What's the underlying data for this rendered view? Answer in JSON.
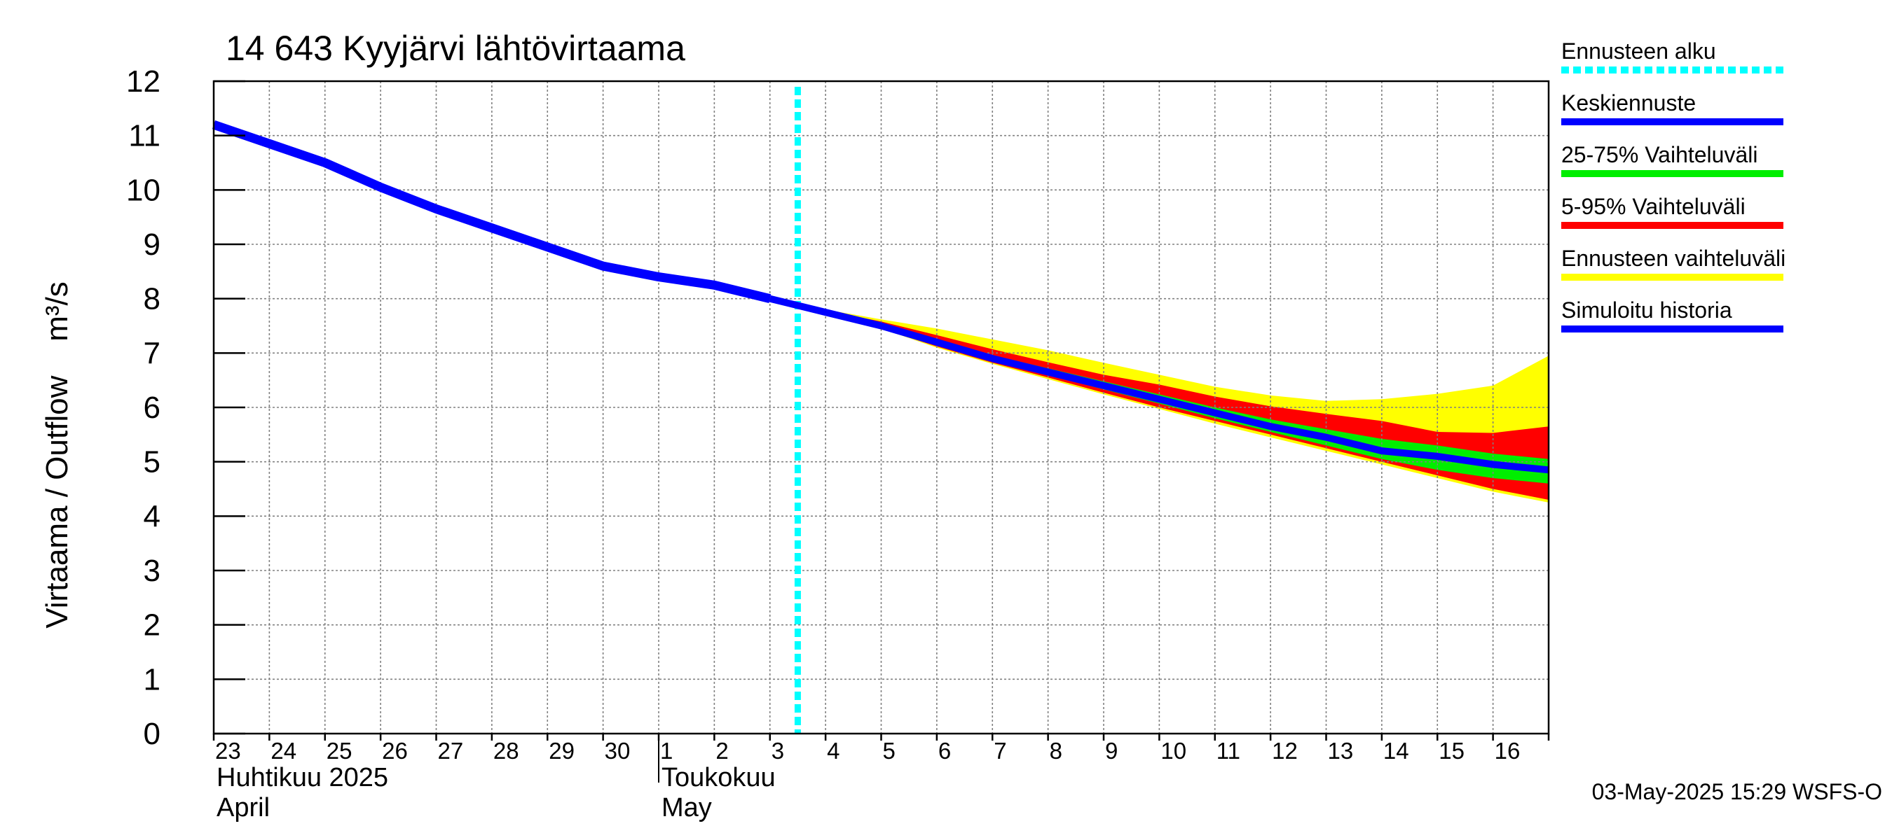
{
  "chart_data": {
    "type": "area",
    "title": "14 643 Kyyjärvi lähtövirtaama",
    "ylabel": "Virtaama / Outflow    m³/s",
    "ylim": [
      0,
      12
    ],
    "yticks": [
      "0",
      "1",
      "2",
      "3",
      "4",
      "5",
      "6",
      "7",
      "8",
      "9",
      "10",
      "11",
      "12"
    ],
    "x_range_days": [
      0,
      24
    ],
    "x_tick_labels": [
      "23",
      "24",
      "25",
      "26",
      "27",
      "28",
      "29",
      "30",
      "1",
      "2",
      "3",
      "4",
      "5",
      "6",
      "7",
      "8",
      "9",
      "10",
      "11",
      "12",
      "13",
      "14",
      "15",
      "16"
    ],
    "month_labels": [
      {
        "line1": "Huhtikuu  2025",
        "line2": "April",
        "start_day": 0
      },
      {
        "line1": "Toukokuu",
        "line2": "May",
        "start_day": 8
      }
    ],
    "month_separator_day": 8,
    "forecast_start_day": 10.5,
    "grid": true,
    "series": {
      "simulated_history": {
        "name": "Simuloitu historia",
        "color": "#0000ff",
        "x": [
          0,
          1,
          2,
          3,
          4,
          5,
          6,
          7,
          8,
          9,
          10
        ],
        "y": [
          11.2,
          10.85,
          10.5,
          10.05,
          9.65,
          9.3,
          8.95,
          8.6,
          8.4,
          8.25,
          8.0
        ]
      },
      "median_forecast": {
        "name": "Keskiennuste",
        "color": "#0000ff",
        "x": [
          10,
          11,
          12,
          13,
          14,
          15,
          16,
          17,
          18,
          19,
          20,
          21,
          22,
          23,
          24
        ],
        "y": [
          8.0,
          7.75,
          7.5,
          7.2,
          6.9,
          6.65,
          6.4,
          6.15,
          5.9,
          5.65,
          5.45,
          5.2,
          5.1,
          4.95,
          4.85
        ]
      },
      "range_25_75": {
        "name": "25-75% Vaihteluväli",
        "color": "#00ee00",
        "x": [
          10,
          11,
          12,
          13,
          14,
          15,
          16,
          17,
          18,
          19,
          20,
          21,
          22,
          23,
          24
        ],
        "low": [
          8.0,
          7.74,
          7.48,
          7.16,
          6.86,
          6.6,
          6.33,
          6.07,
          5.8,
          5.55,
          5.3,
          5.05,
          4.85,
          4.7,
          4.6
        ],
        "high": [
          8.0,
          7.76,
          7.52,
          7.24,
          6.96,
          6.72,
          6.48,
          6.24,
          6.0,
          5.78,
          5.6,
          5.42,
          5.3,
          5.15,
          5.05
        ]
      },
      "range_5_95": {
        "name": "5-95% Vaihteluväli",
        "color": "#ff0000",
        "x": [
          10,
          11,
          12,
          13,
          14,
          15,
          16,
          17,
          18,
          19,
          20,
          21,
          22,
          23,
          24
        ],
        "low": [
          8.0,
          7.72,
          7.45,
          7.12,
          6.82,
          6.55,
          6.27,
          6.0,
          5.75,
          5.5,
          5.25,
          5.0,
          4.75,
          4.5,
          4.3
        ],
        "high": [
          8.0,
          7.78,
          7.58,
          7.33,
          7.07,
          6.83,
          6.6,
          6.42,
          6.2,
          6.02,
          5.88,
          5.75,
          5.55,
          5.53,
          5.65
        ]
      },
      "forecast_range": {
        "name": "Ennusteen vaihteluväli",
        "color": "#ffff00",
        "x": [
          10,
          11,
          12,
          13,
          14,
          15,
          16,
          17,
          18,
          19,
          20,
          21,
          22,
          23,
          24
        ],
        "low": [
          8.0,
          7.72,
          7.45,
          7.1,
          6.8,
          6.52,
          6.24,
          5.97,
          5.7,
          5.45,
          5.2,
          4.95,
          4.7,
          4.45,
          4.25
        ],
        "high": [
          8.0,
          7.8,
          7.62,
          7.45,
          7.25,
          7.05,
          6.82,
          6.6,
          6.38,
          6.22,
          6.12,
          6.15,
          6.25,
          6.4,
          6.95
        ]
      }
    },
    "legend": [
      {
        "label": "Ennusteen alku",
        "color": "#00ffff",
        "style": "dotted"
      },
      {
        "label": "Keskiennuste",
        "color": "#0000ff",
        "style": "solid"
      },
      {
        "label": "25-75% Vaihteluväli",
        "color": "#00ee00",
        "style": "solid"
      },
      {
        "label": "5-95% Vaihteluväli",
        "color": "#ff0000",
        "style": "solid"
      },
      {
        "label": "Ennusteen vaihteluväli",
        "color": "#ffff00",
        "style": "solid"
      },
      {
        "label": "Simuloitu historia",
        "color": "#0000ff",
        "style": "solid"
      }
    ],
    "legend_position": "right"
  },
  "footer": {
    "timestamp": "03-May-2025 15:29 WSFS-O"
  },
  "colors": {
    "grid": "#808080",
    "axis": "#000000",
    "forecast_start": "#00ffff"
  }
}
